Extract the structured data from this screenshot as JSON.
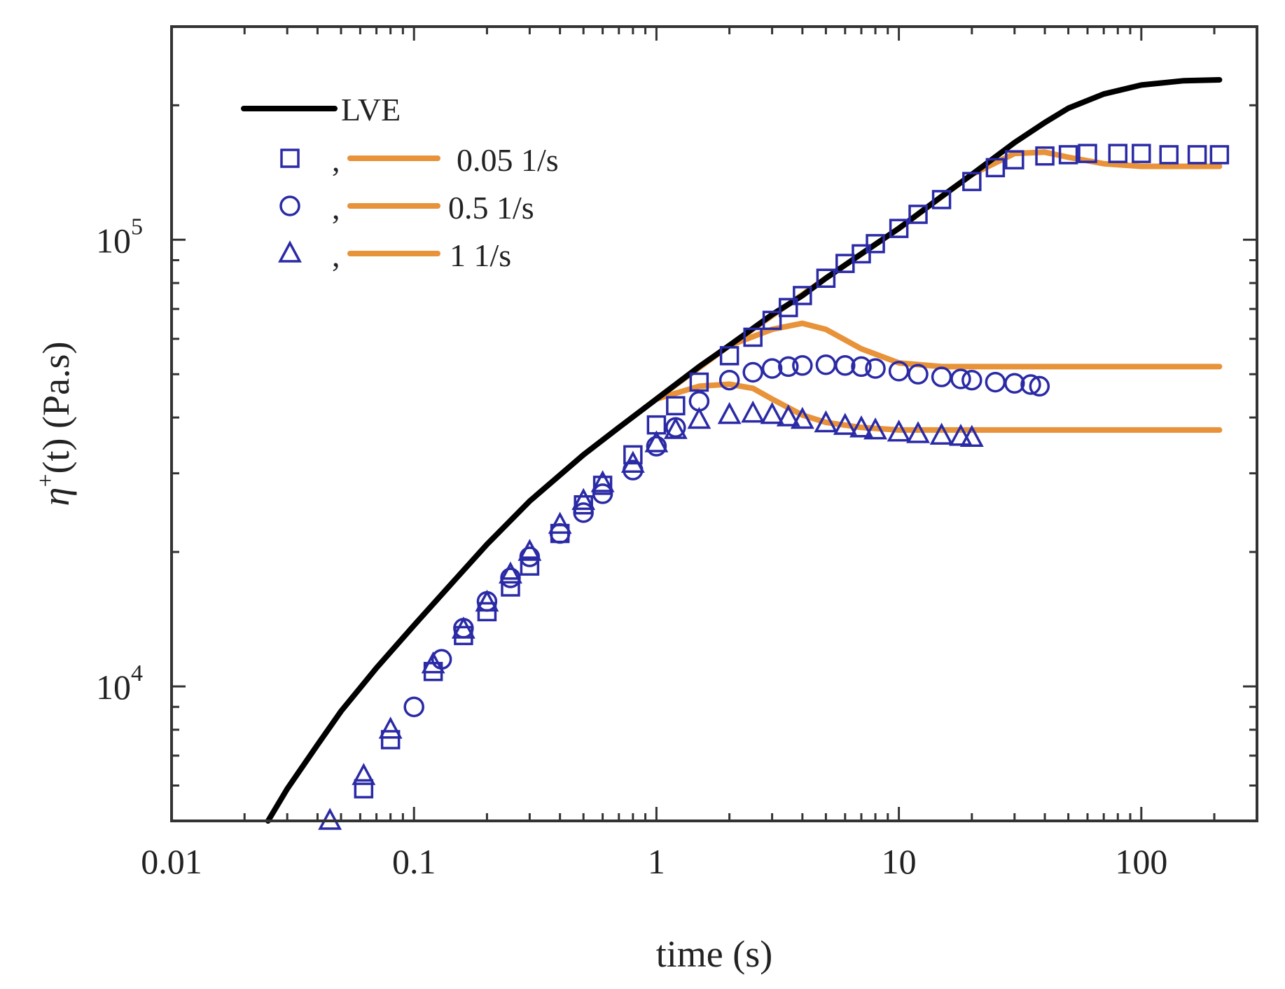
{
  "chart_data": {
    "type": "scatter",
    "x_scale": "log",
    "y_scale": "log",
    "xlim": [
      0.01,
      300
    ],
    "ylim": [
      5000,
      300000
    ],
    "xlabel": "time (s)",
    "ylabel_parts": {
      "symbol": "η",
      "superscript": "+",
      "arg": "(t)",
      "unit": " (Pa.s)"
    },
    "x_ticks": [
      {
        "value": 0.01,
        "label": "0.01"
      },
      {
        "value": 0.1,
        "label": "0.1"
      },
      {
        "value": 1,
        "label": "1"
      },
      {
        "value": 10,
        "label": "10"
      },
      {
        "value": 100,
        "label": "100"
      }
    ],
    "y_ticks": [
      {
        "value": 10000,
        "base": "10",
        "exp": "4"
      },
      {
        "value": 100000,
        "base": "10",
        "exp": "5"
      }
    ],
    "legend": {
      "position": "top-left",
      "line_entry": "LVE",
      "entries": [
        {
          "marker": "square",
          "separator": ",",
          "label": "0.05 1/s"
        },
        {
          "marker": "circle",
          "separator": ",",
          "label": "0.5 1/s"
        },
        {
          "marker": "triangle",
          "separator": ",",
          "label": "1 1/s"
        }
      ]
    },
    "colors": {
      "lve": "#000000",
      "model": "#e8923a",
      "data": "#2a2aa6"
    },
    "lve": {
      "x": [
        0.025,
        0.03,
        0.04,
        0.05,
        0.07,
        0.1,
        0.15,
        0.2,
        0.3,
        0.5,
        0.7,
        1,
        1.5,
        2,
        3,
        4,
        5,
        7,
        10,
        15,
        20,
        30,
        40,
        50,
        70,
        100,
        150,
        210
      ],
      "y": [
        5000,
        5900,
        7400,
        8800,
        11000,
        13700,
        17500,
        20800,
        26000,
        33000,
        38000,
        44000,
        52000,
        58000,
        68000,
        75000,
        82000,
        93000,
        106000,
        125000,
        140000,
        165000,
        183000,
        197000,
        212000,
        222000,
        227000,
        228000
      ]
    },
    "model_curves": [
      {
        "x": [
          1,
          2,
          5,
          10,
          20,
          30,
          40,
          50,
          70,
          100,
          150,
          210
        ],
        "y": [
          44000,
          58000,
          82000,
          106000,
          140000,
          156000,
          157000,
          153000,
          148000,
          146000,
          146000,
          146000
        ]
      },
      {
        "x": [
          1,
          2,
          3,
          4,
          5,
          7,
          10,
          15,
          20,
          50,
          100,
          210
        ],
        "y": [
          44000,
          58000,
          63000,
          65000,
          63000,
          57000,
          53000,
          52000,
          52000,
          52000,
          52000,
          52000
        ]
      },
      {
        "x": [
          1,
          1.5,
          2,
          2.5,
          3,
          4,
          5,
          7,
          10,
          20,
          50,
          100,
          210
        ],
        "y": [
          44000,
          47000,
          47500,
          46500,
          44000,
          40500,
          39000,
          38000,
          37500,
          37500,
          37500,
          37500,
          37500
        ]
      }
    ],
    "series": [
      {
        "name": "0.05 1/s",
        "marker": "square",
        "x": [
          0.062,
          0.08,
          0.12,
          0.16,
          0.2,
          0.25,
          0.3,
          0.4,
          0.5,
          0.6,
          0.8,
          1,
          1.2,
          1.5,
          2,
          2.5,
          3,
          3.5,
          4,
          5,
          6,
          7,
          8,
          10,
          12,
          15,
          20,
          25,
          30,
          40,
          50,
          60,
          80,
          100,
          130,
          170,
          210
        ],
        "y": [
          5900,
          7600,
          10800,
          13000,
          14700,
          16700,
          18600,
          22000,
          25500,
          28200,
          33000,
          38500,
          42500,
          48000,
          55000,
          60500,
          66000,
          70500,
          75000,
          82000,
          88500,
          93000,
          98000,
          106000,
          114000,
          123000,
          135000,
          145000,
          151000,
          154000,
          155000,
          156000,
          156000,
          156000,
          155000,
          155000,
          155000
        ]
      },
      {
        "name": "0.5 1/s",
        "marker": "circle",
        "x": [
          0.1,
          0.13,
          0.16,
          0.2,
          0.25,
          0.3,
          0.4,
          0.5,
          0.6,
          0.8,
          1,
          1.2,
          1.5,
          2,
          2.5,
          3,
          3.5,
          4,
          5,
          6,
          7,
          8,
          10,
          12,
          15,
          18,
          20,
          25,
          30,
          35,
          38
        ],
        "y": [
          9000,
          11500,
          13500,
          15500,
          17500,
          19500,
          22000,
          24500,
          27000,
          30500,
          34500,
          38000,
          43500,
          48500,
          50500,
          51500,
          52000,
          52300,
          52500,
          52300,
          52000,
          51500,
          50800,
          50000,
          49300,
          48800,
          48500,
          48000,
          47700,
          47400,
          47000
        ]
      },
      {
        "name": "1 1/s",
        "marker": "triangle",
        "x": [
          0.045,
          0.062,
          0.08,
          0.12,
          0.16,
          0.2,
          0.25,
          0.3,
          0.4,
          0.5,
          0.6,
          0.8,
          1,
          1.2,
          1.5,
          2,
          2.5,
          3,
          3.5,
          4,
          5,
          6,
          7,
          8,
          10,
          12,
          15,
          18,
          20
        ],
        "y": [
          5000,
          6300,
          8000,
          11200,
          13400,
          15400,
          17800,
          20000,
          23000,
          26000,
          28500,
          31500,
          35000,
          37500,
          39500,
          40500,
          40800,
          40500,
          40000,
          39500,
          38800,
          38300,
          37800,
          37400,
          37000,
          36700,
          36400,
          36200,
          36000
        ]
      }
    ]
  }
}
